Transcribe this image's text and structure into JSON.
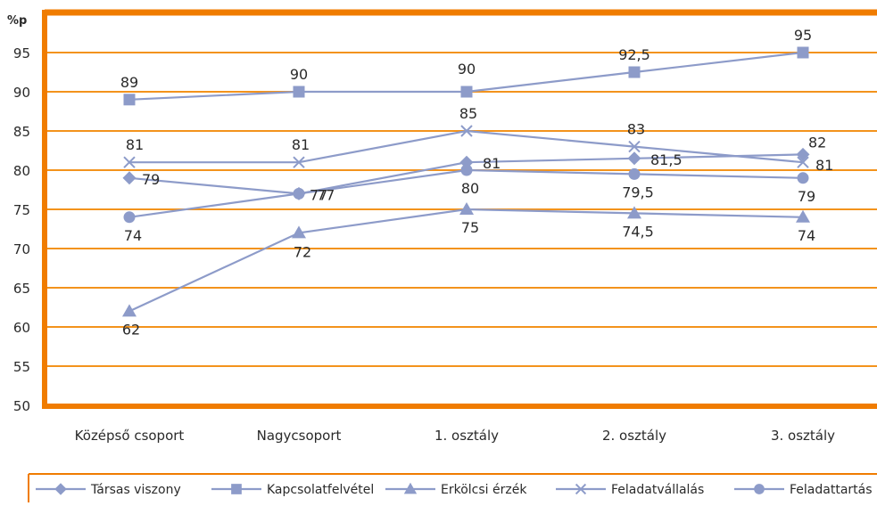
{
  "colors": {
    "frame": "#f07c00",
    "grid": "#f3931c",
    "series": "#8d9bc9",
    "marker": "#8d9bc9"
  },
  "chart_data": {
    "type": "line",
    "ylabel": "%p",
    "ylim": [
      50,
      95
    ],
    "y_ticks": [
      "50",
      "55",
      "60",
      "65",
      "70",
      "75",
      "80",
      "85",
      "90",
      "95"
    ],
    "categories": [
      "Középső csoport",
      "Nagycsoport",
      "1. osztály",
      "2. osztály",
      "3. osztály"
    ],
    "grid": true,
    "legend_position": "bottom",
    "series": [
      {
        "name": "Társas viszony",
        "marker": "diamond",
        "values": [
          79,
          77,
          81,
          81.5,
          82
        ],
        "labels": [
          "79",
          "77",
          "81",
          "81,5",
          "82"
        ]
      },
      {
        "name": "Kapcsolatfelvétel",
        "marker": "square",
        "values": [
          89,
          90,
          90,
          92.5,
          95
        ],
        "labels": [
          "89",
          "90",
          "90",
          "92,5",
          "95"
        ]
      },
      {
        "name": "Erkölcsi érzék",
        "marker": "triangle",
        "values": [
          62,
          72,
          75,
          74.5,
          74
        ],
        "labels": [
          "62",
          "72",
          "75",
          "74,5",
          "74"
        ]
      },
      {
        "name": "Feladatvállalás",
        "marker": "x",
        "values": [
          81,
          81,
          85,
          83,
          81
        ],
        "labels": [
          "81",
          "81",
          "85",
          "83",
          "81"
        ]
      },
      {
        "name": "Feladattartás",
        "marker": "circle",
        "values": [
          74,
          77,
          80,
          79.5,
          79
        ],
        "labels": [
          "74",
          "77",
          "80",
          "79,5",
          "79"
        ]
      }
    ]
  }
}
